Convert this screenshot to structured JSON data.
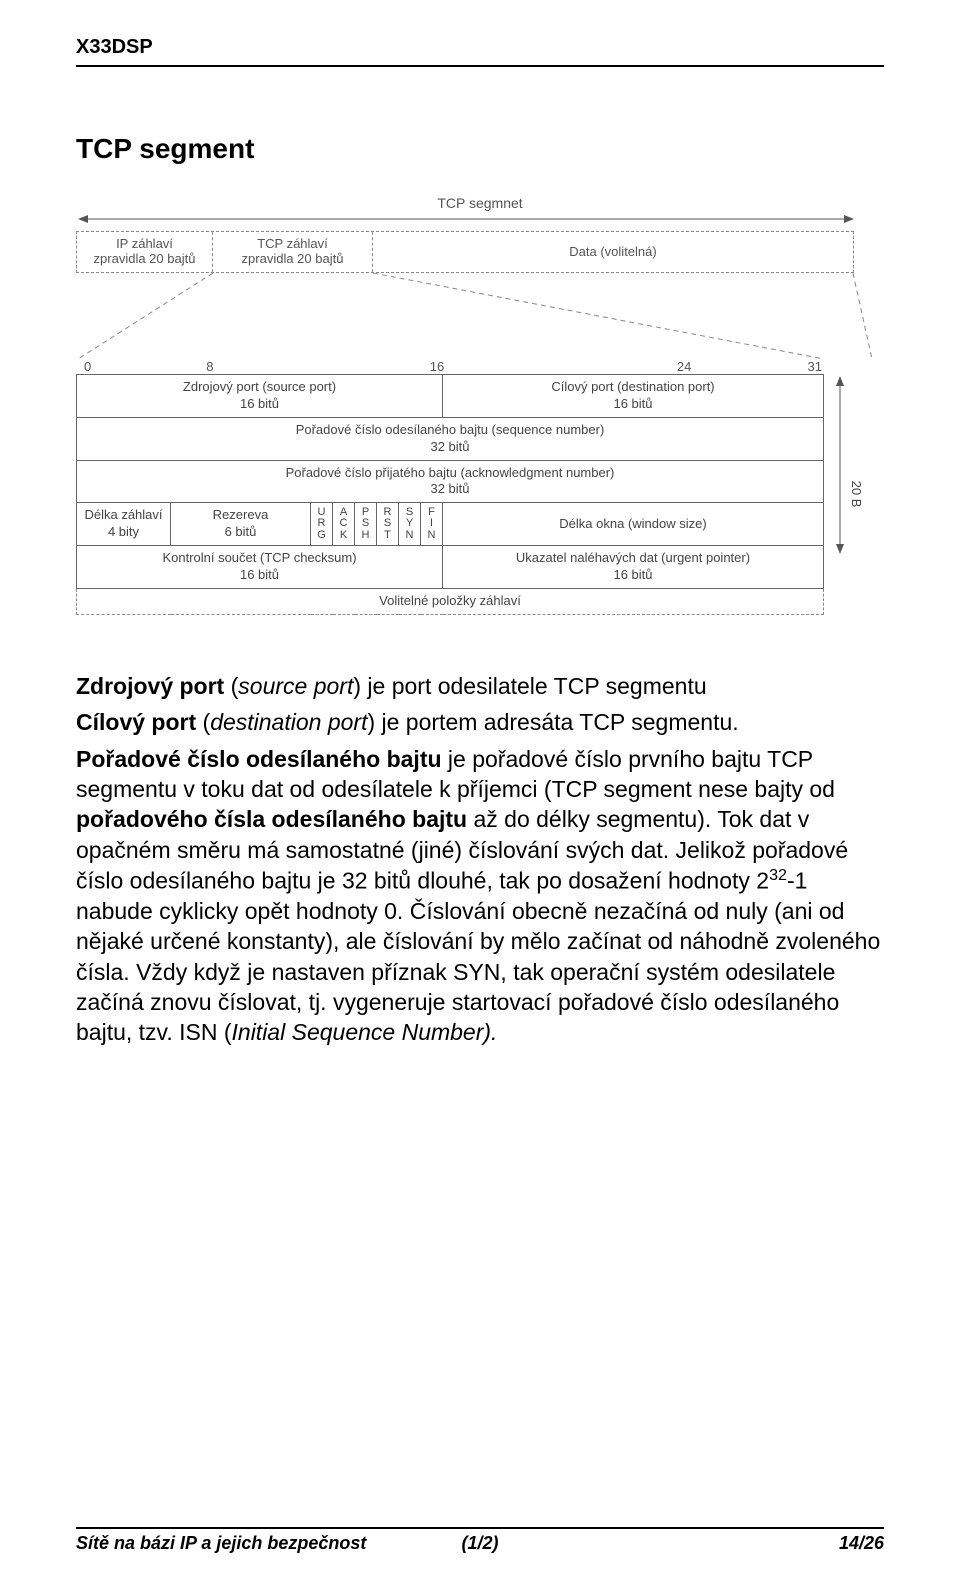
{
  "course_code": "X33DSP",
  "section_title": "TCP segment",
  "diagram": {
    "segment_label": "TCP segmnet",
    "top_row": {
      "ip_header": {
        "line1": "IP záhlaví",
        "line2": "zpravidla 20 bajtů"
      },
      "tcp_header": {
        "line1": "TCP záhlaví",
        "line2": "zpravidla 20 bajtů"
      },
      "data": "Data (volitelná)"
    },
    "bit_scale": [
      "0",
      "8",
      "16",
      "24",
      "31"
    ],
    "rows": {
      "r1": {
        "left": {
          "l1": "Zdrojový port (source port)",
          "l2": "16 bitů"
        },
        "right": {
          "l1": "Cílový port (destination port)",
          "l2": "16 bitů"
        }
      },
      "r2": {
        "l1": "Pořadové číslo odesílaného bajtu (sequence number)",
        "l2": "32 bitů"
      },
      "r3": {
        "l1": "Pořadové číslo přijatého bajtu (acknowledgment number)",
        "l2": "32 bitů"
      },
      "r4": {
        "hlen": {
          "l1": "Délka záhlaví",
          "l2": "4 bity"
        },
        "res": {
          "l1": "Rezereva",
          "l2": "6 bitů"
        },
        "flags": [
          "U\nR\nG",
          "A\nC\nK",
          "P\nS\nH",
          "R\nS\nT",
          "S\nY\nN",
          "F\nI\nN"
        ],
        "win": "Délka okna (window size)"
      },
      "r5": {
        "left": {
          "l1": "Kontrolní součet (TCP checksum)",
          "l2": "16 bitů"
        },
        "right": {
          "l1": "Ukazatel naléhavých dat (urgent pointer)",
          "l2": "16 bitů"
        }
      },
      "r6": "Volitelné položky záhlaví"
    },
    "side_label": "20 B"
  },
  "body": {
    "p1_a": "Zdrojový port",
    "p1_b": " (",
    "p1_c": "source port",
    "p1_d": ") je port odesilatele TCP segmentu",
    "p2_a": "Cílový port",
    "p2_b": " (",
    "p2_c": "destination port",
    "p2_d": ") je portem adresáta TCP segmentu.",
    "p3_a": "Pořadové číslo odesílaného bajtu",
    "p3_b": " je pořadové číslo prvního bajtu TCP segmentu v toku dat od odesílatele k příjemci (TCP segment nese bajty od ",
    "p3_c": "pořadového čísla odesílaného bajtu",
    "p3_d": " až do délky segmentu). Tok dat v opačném směru má samostatné (jiné) číslování svých dat. Jelikož pořadové číslo odesílaného bajtu je 32 bitů dlouhé, tak po dosažení hodnoty 2",
    "p3_sup": "32",
    "p3_e": "-1 nabude cyklicky opět hodnoty 0. Číslování obecně nezačíná od nuly (ani od nějaké určené konstanty), ale číslování by mělo začínat od náhodně zvoleného čísla. Vždy když je nastaven příznak SYN, tak operační systém odesilatele začíná znovu číslovat, tj. vygeneruje startovací pořadové číslo odesílaného bajtu, tzv. ISN (",
    "p3_f": "Initial Sequence Number).",
    "colors": {
      "text": "#000000",
      "bg": "#ffffff"
    }
  },
  "footer": {
    "left": "Sítě na bázi IP a jejich bezpečnost",
    "center": "(1/2)",
    "right": "14/26"
  }
}
